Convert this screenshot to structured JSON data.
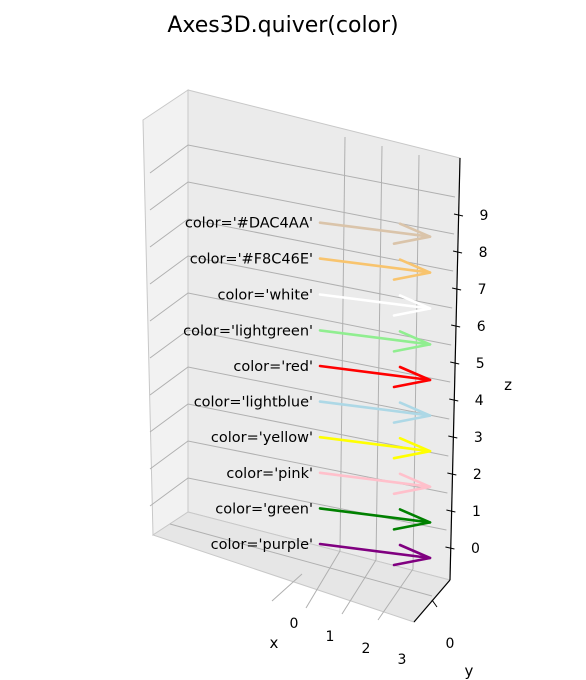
{
  "chart_data": {
    "type": "quiver3d",
    "title": "Axes3D.quiver(color)",
    "xlabel": "x",
    "ylabel": "y",
    "zlabel": "z",
    "x_ticks": [
      "0",
      "1",
      "2",
      "3"
    ],
    "y_ticks": [
      "0"
    ],
    "z_ticks": [
      "0",
      "1",
      "2",
      "3",
      "4",
      "5",
      "6",
      "7",
      "8",
      "9"
    ],
    "grid": true,
    "arrows": [
      {
        "z": 0,
        "label": "color='purple'",
        "color": "#800080"
      },
      {
        "z": 1,
        "label": "color='green'",
        "color": "#008000"
      },
      {
        "z": 2,
        "label": "color='pink'",
        "color": "#FFC0CB"
      },
      {
        "z": 3,
        "label": "color='yellow'",
        "color": "#FFFF00"
      },
      {
        "z": 4,
        "label": "color='lightblue'",
        "color": "#ADD8E6"
      },
      {
        "z": 5,
        "label": "color='red'",
        "color": "#FF0000"
      },
      {
        "z": 6,
        "label": "color='lightgreen'",
        "color": "#90EE90"
      },
      {
        "z": 7,
        "label": "color='white'",
        "color": "#FFFFFF"
      },
      {
        "z": 8,
        "label": "color='#F8C46E'",
        "color": "#F8C46E"
      },
      {
        "z": 9,
        "label": "color='#DAC4AA'",
        "color": "#DAC4AA"
      }
    ]
  }
}
